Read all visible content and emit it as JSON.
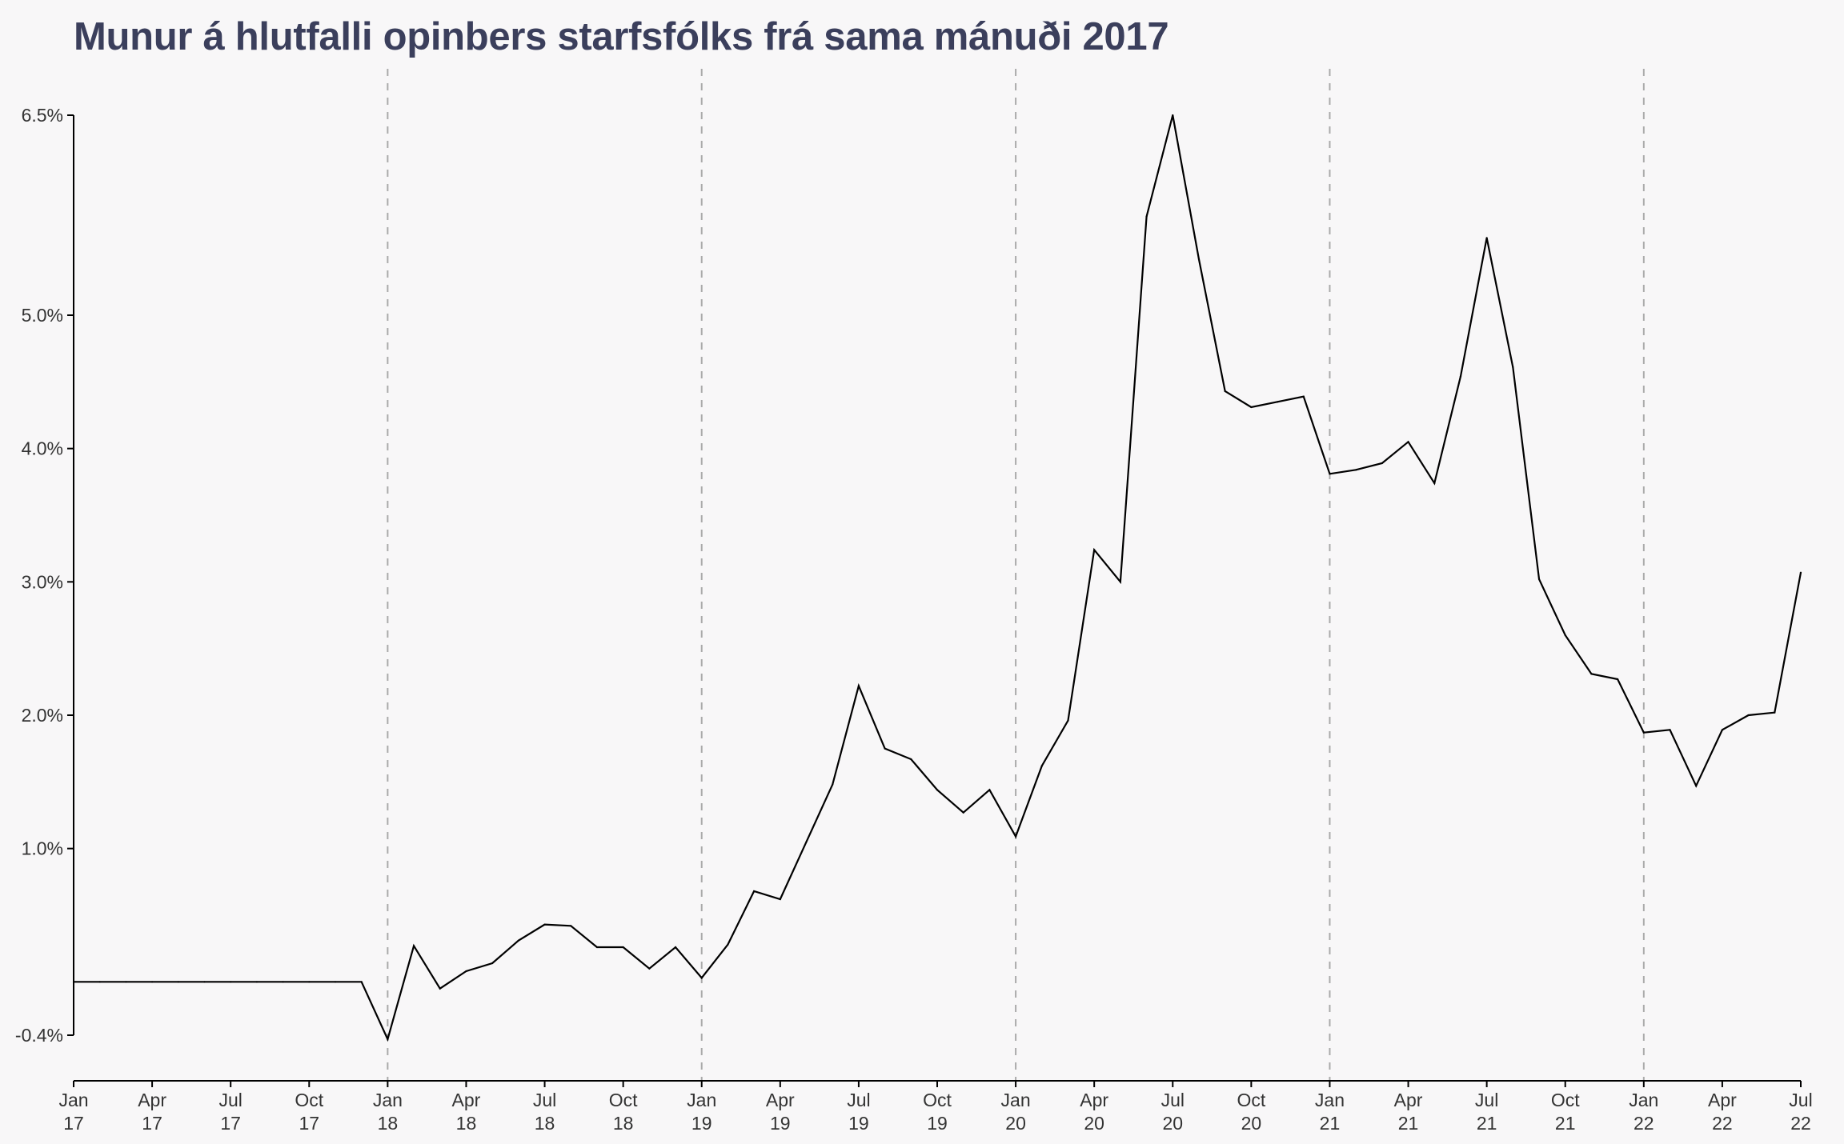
{
  "chart_data": {
    "type": "line",
    "title": "Munur á hlutfalli opinbers starfsfólks frá sama mánuði 2017",
    "xlabel": "",
    "ylabel": "",
    "x_start": "2017-01",
    "x_end": "2022-07",
    "x_ticks": [
      {
        "label": "Jan 17"
      },
      {
        "label": "Apr 17"
      },
      {
        "label": "Jul 17"
      },
      {
        "label": "Oct 17"
      },
      {
        "label": "Jan 18"
      },
      {
        "label": "Apr 18"
      },
      {
        "label": "Jul 18"
      },
      {
        "label": "Oct 18"
      },
      {
        "label": "Jan 19"
      },
      {
        "label": "Apr 19"
      },
      {
        "label": "Jul 19"
      },
      {
        "label": "Oct 19"
      },
      {
        "label": "Jan 20"
      },
      {
        "label": "Apr 20"
      },
      {
        "label": "Jul 20"
      },
      {
        "label": "Oct 20"
      },
      {
        "label": "Jan 21"
      },
      {
        "label": "Apr 21"
      },
      {
        "label": "Jul 21"
      },
      {
        "label": "Oct 21"
      },
      {
        "label": "Jan 22"
      },
      {
        "label": "Apr 22"
      },
      {
        "label": "Jul 22"
      }
    ],
    "y_ticks": [
      {
        "value": -0.4,
        "label": "-0.4%"
      },
      {
        "value": 1.0,
        "label": "1.0%"
      },
      {
        "value": 2.0,
        "label": "2.0%"
      },
      {
        "value": 3.0,
        "label": "3.0%"
      },
      {
        "value": 4.0,
        "label": "4.0%"
      },
      {
        "value": 5.0,
        "label": "5.0%"
      },
      {
        "value": 6.5,
        "label": "6.5%"
      }
    ],
    "ylim": [
      -0.4,
      6.5
    ],
    "year_separators": [
      "Jan 18",
      "Jan 19",
      "Jan 20",
      "Jan 21",
      "Jan 22"
    ],
    "grid": false,
    "legend": "none",
    "series": [
      {
        "color": "#000000",
        "values": [
          0.0,
          0.0,
          0.0,
          0.0,
          0.0,
          0.0,
          0.0,
          0.0,
          0.0,
          0.0,
          0.0,
          0.0,
          -0.43,
          0.27,
          -0.05,
          0.08,
          0.14,
          0.31,
          0.43,
          0.42,
          0.26,
          0.26,
          0.1,
          0.26,
          0.03,
          0.28,
          0.68,
          0.62,
          1.05,
          1.48,
          2.22,
          1.75,
          1.67,
          1.44,
          1.27,
          1.44,
          1.09,
          1.62,
          1.96,
          3.24,
          3.0,
          5.74,
          6.5,
          5.42,
          4.43,
          4.31,
          4.35,
          4.39,
          3.81,
          3.84,
          3.89,
          4.05,
          3.74,
          4.54,
          5.58,
          4.61,
          3.02,
          2.6,
          2.31,
          2.27,
          1.87,
          1.89,
          1.47,
          1.89,
          2.0,
          2.02,
          3.07
        ]
      }
    ]
  }
}
